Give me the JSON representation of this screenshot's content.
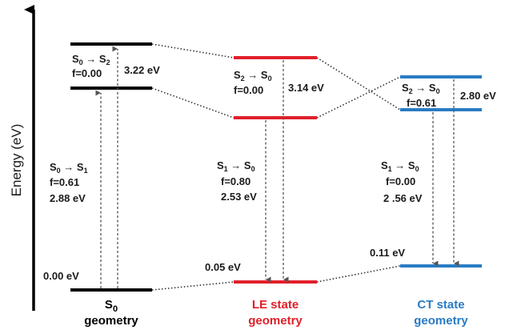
{
  "axis": {
    "label": "Energy (eV)"
  },
  "colors": {
    "s0": "#000000",
    "le": "#e0202a",
    "ct": "#2a7cc4",
    "text": "#1a1a1a",
    "dots": "#333333",
    "arrows": "#555555"
  },
  "s0": {
    "caption_line1": "S",
    "caption_sub": "0",
    "caption_line2": "geometry",
    "level_bottom": "0.00 eV",
    "abs1": {
      "from": "S",
      "from_sub": "0",
      "arrow": " → ",
      "to": "S",
      "to_sub": "1",
      "f": "f=0.61",
      "energy": "2.88 eV"
    },
    "abs2": {
      "from": "S",
      "from_sub": "0",
      "arrow": " → ",
      "to": "S",
      "to_sub": "2",
      "f": "f=0.00",
      "energy": "3.22 eV"
    }
  },
  "le": {
    "caption_line1": "LE state",
    "caption_line2": "geometry",
    "level_bottom": "0.05 eV",
    "em2": {
      "from": "S",
      "from_sub": "2",
      "arrow": " → ",
      "to": "S",
      "to_sub": "0",
      "f": "f=0.00",
      "energy": "3.14 eV"
    },
    "em1": {
      "from": "S",
      "from_sub": "1",
      "arrow": " → ",
      "to": "S",
      "to_sub": "0",
      "f": "f=0.80",
      "energy": "2.53 eV"
    }
  },
  "ct": {
    "caption_line1": "CT state",
    "caption_line2": "geometry",
    "level_bottom": "0.11 eV",
    "em2": {
      "from": "S",
      "from_sub": "2",
      "arrow": " → ",
      "to": "S",
      "to_sub": "0",
      "f": "f=0.61",
      "energy": "2.80 eV"
    },
    "em1": {
      "from": "S",
      "from_sub": "1",
      "arrow": " → ",
      "to": "S",
      "to_sub": "0",
      "f": "f=0.00",
      "energy": "2 .56 eV"
    }
  }
}
